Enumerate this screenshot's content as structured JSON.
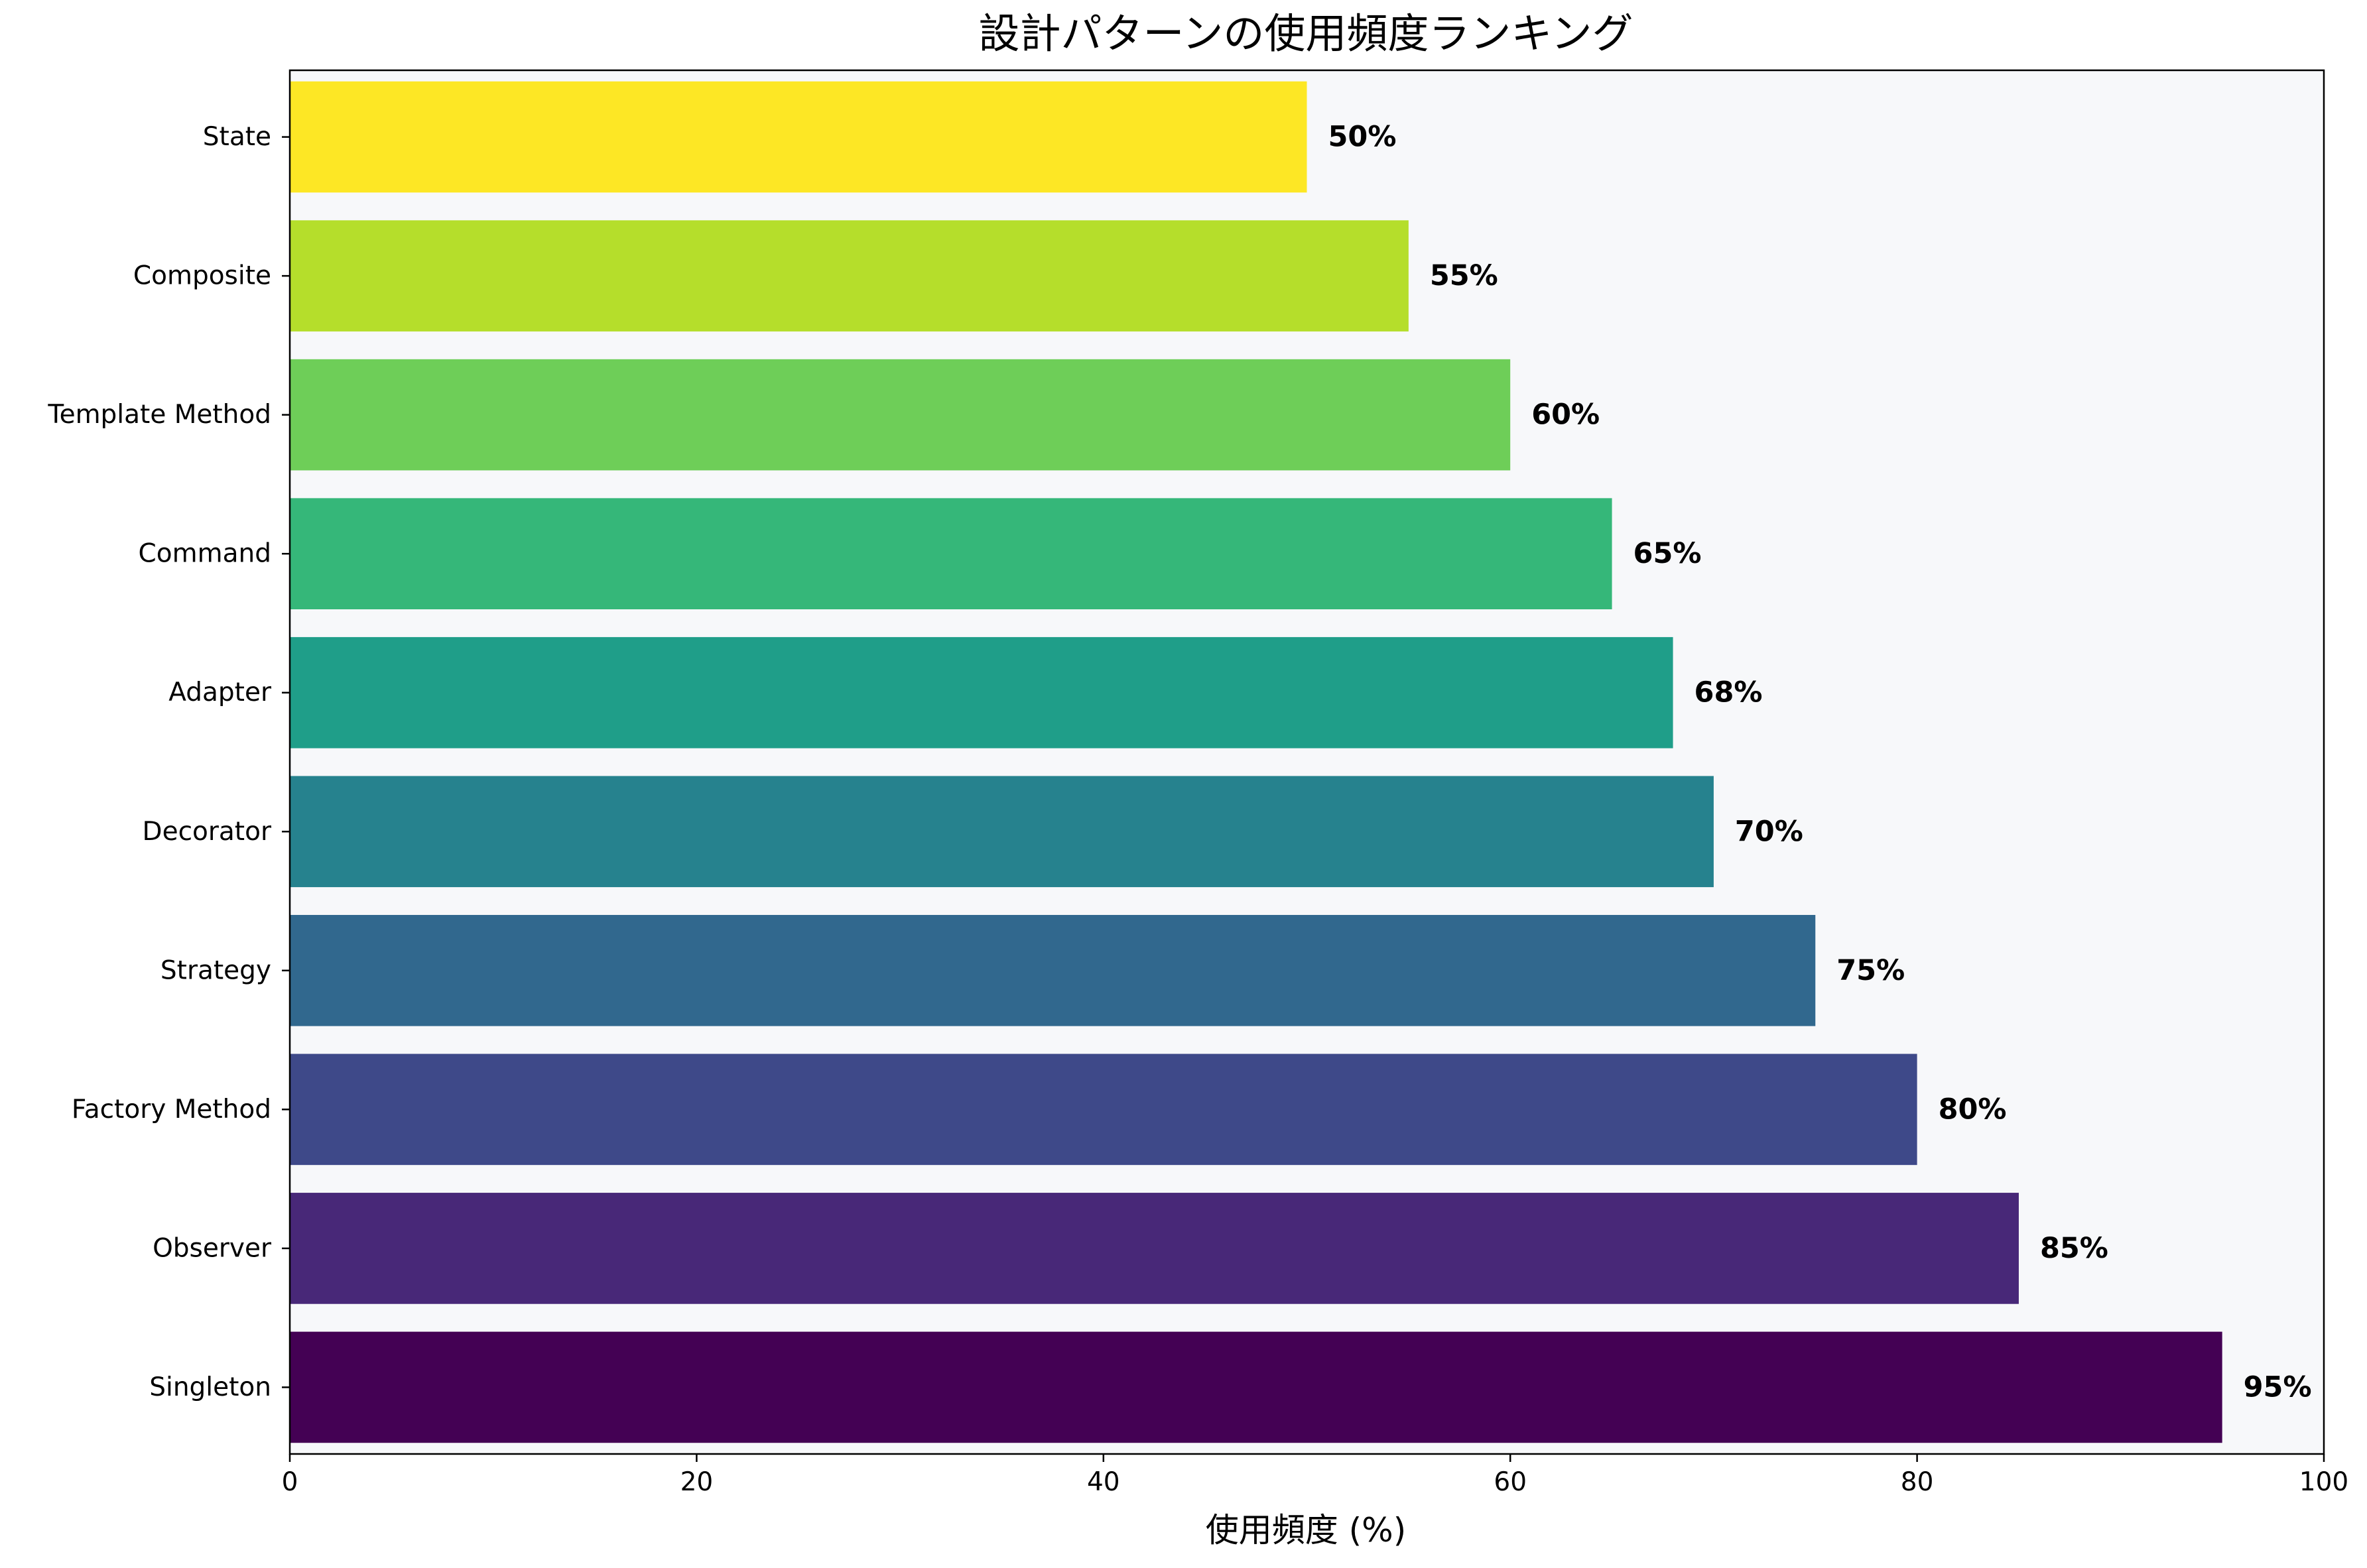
{
  "chart_data": {
    "type": "bar",
    "orientation": "horizontal",
    "title": "設計パターンの使用頻度ランキング",
    "xlabel": "使用頻度 (%)",
    "ylabel": "",
    "xlim": [
      0,
      100
    ],
    "xticks": [
      0,
      20,
      40,
      60,
      80,
      100
    ],
    "grid": false,
    "plot_background": "#f7f8fa",
    "categories": [
      "Singleton",
      "Observer",
      "Factory Method",
      "Strategy",
      "Decorator",
      "Adapter",
      "Command",
      "Template Method",
      "Composite",
      "State"
    ],
    "values": [
      95,
      85,
      80,
      75,
      70,
      68,
      65,
      60,
      55,
      50
    ],
    "value_labels": [
      "95%",
      "85%",
      "80%",
      "75%",
      "70%",
      "68%",
      "65%",
      "60%",
      "55%",
      "50%"
    ],
    "colors": [
      "#440154",
      "#482878",
      "#3e4989",
      "#31688e",
      "#26828e",
      "#1f9e89",
      "#35b779",
      "#6ece58",
      "#b5de2b",
      "#fde725"
    ]
  }
}
